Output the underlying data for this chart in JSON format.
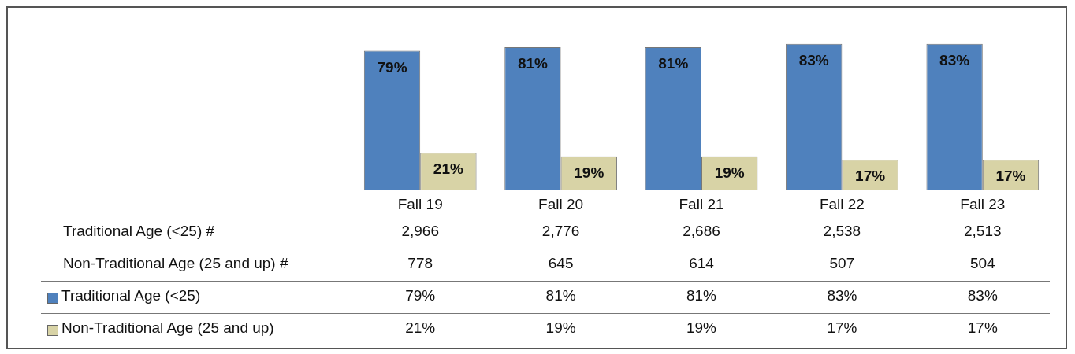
{
  "chart_data": {
    "type": "bar",
    "categories": [
      "Fall 19",
      "Fall 20",
      "Fall 21",
      "Fall 22",
      "Fall 23"
    ],
    "series": [
      {
        "name": "Traditional Age (<25)",
        "color": "#4f81bd",
        "values": [
          79,
          81,
          81,
          83,
          83
        ],
        "value_labels": [
          "79%",
          "81%",
          "81%",
          "83%",
          "83%"
        ]
      },
      {
        "name": "Non-Traditional Age (25 and up)",
        "color": "#d8d3a6",
        "values": [
          21,
          19,
          19,
          17,
          17
        ],
        "value_labels": [
          "21%",
          "19%",
          "19%",
          "17%",
          "17%"
        ]
      }
    ],
    "annotations": [
      "Traditional Age (<25) #",
      "2,966",
      "2,776",
      "2,686",
      "2,538",
      "2,513",
      "Non-Traditional Age (25 and up) #",
      "778",
      "645",
      "614",
      "507",
      "504"
    ],
    "legend": "bottom",
    "tick_labels": "x",
    "grid": false
  }
}
